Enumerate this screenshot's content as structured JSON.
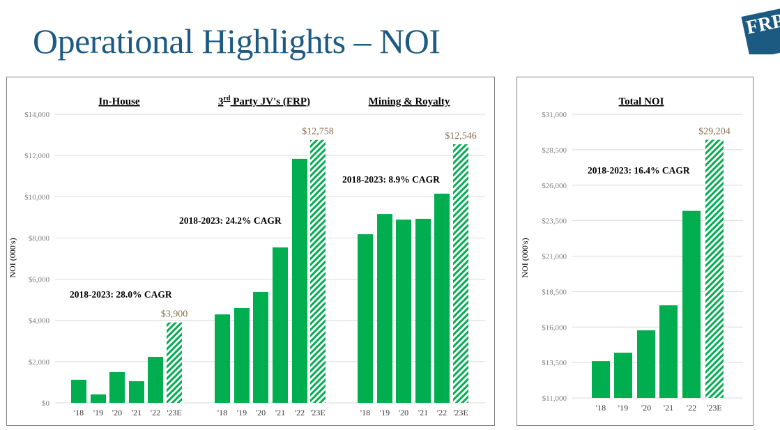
{
  "page_title": "Operational Highlights – NOI",
  "logo_text": "FRP",
  "colors": {
    "title": "#1d5a82",
    "bar": "#00ad4f",
    "tick": "#7f7f7f",
    "value_label": "#8a6d4e",
    "grid": "#d9d9d9"
  },
  "chart_data": [
    {
      "type": "bar",
      "panel": "left",
      "ylabel": "NOI (000's)",
      "ylim": [
        0,
        14000
      ],
      "yticks": [
        "$0",
        "$2,000",
        "$4,000",
        "$6,000",
        "$8,000",
        "$10,000",
        "$12,000",
        "$14,000"
      ],
      "ytick_values": [
        0,
        2000,
        4000,
        6000,
        8000,
        10000,
        12000,
        14000
      ],
      "grid": true,
      "groups": [
        {
          "title": "In-House",
          "categories": [
            "'18",
            "'19",
            "'20",
            "'21",
            "'22",
            "'23E"
          ],
          "values": [
            1120,
            410,
            1490,
            1050,
            2230,
            3900
          ],
          "estimate_label": "$3,900",
          "cagr": "2018-2023: 28.0% CAGR"
        },
        {
          "title": "3rd Party JV's (FRP)",
          "title_main": "3",
          "title_sup": "rd",
          "title_rest": " Party JV's (FRP)",
          "categories": [
            "'18",
            "'19",
            "'20",
            "'21",
            "'22",
            "'23E"
          ],
          "values": [
            4290,
            4600,
            5380,
            7540,
            11840,
            12758
          ],
          "estimate_label": "$12,758",
          "cagr": "2018-2023: 24.2% CAGR"
        },
        {
          "title": "Mining & Royalty",
          "categories": [
            "'18",
            "'19",
            "'20",
            "'21",
            "'22",
            "'23E"
          ],
          "values": [
            8180,
            9160,
            8890,
            8930,
            10150,
            12546
          ],
          "estimate_label": "$12,546",
          "cagr": "2018-2023: 8.9% CAGR"
        }
      ]
    },
    {
      "type": "bar",
      "panel": "right",
      "ylabel": "NOI (000's)",
      "ylim": [
        11000,
        31000
      ],
      "yticks": [
        "$11,000",
        "$13,500",
        "$16,000",
        "$18,500",
        "$21,000",
        "$23,500",
        "$26,000",
        "$28,500",
        "$31,000"
      ],
      "ytick_values": [
        11000,
        13500,
        16000,
        18500,
        21000,
        23500,
        26000,
        28500,
        31000
      ],
      "grid": true,
      "groups": [
        {
          "title": "Total NOI",
          "categories": [
            "'18",
            "'19",
            "'20",
            "'21",
            "'22",
            "'23E"
          ],
          "values": [
            13600,
            14190,
            15770,
            17530,
            24190,
            29204
          ],
          "estimate_label": "$29,204",
          "cagr": "2018-2023: 16.4% CAGR"
        }
      ]
    }
  ]
}
